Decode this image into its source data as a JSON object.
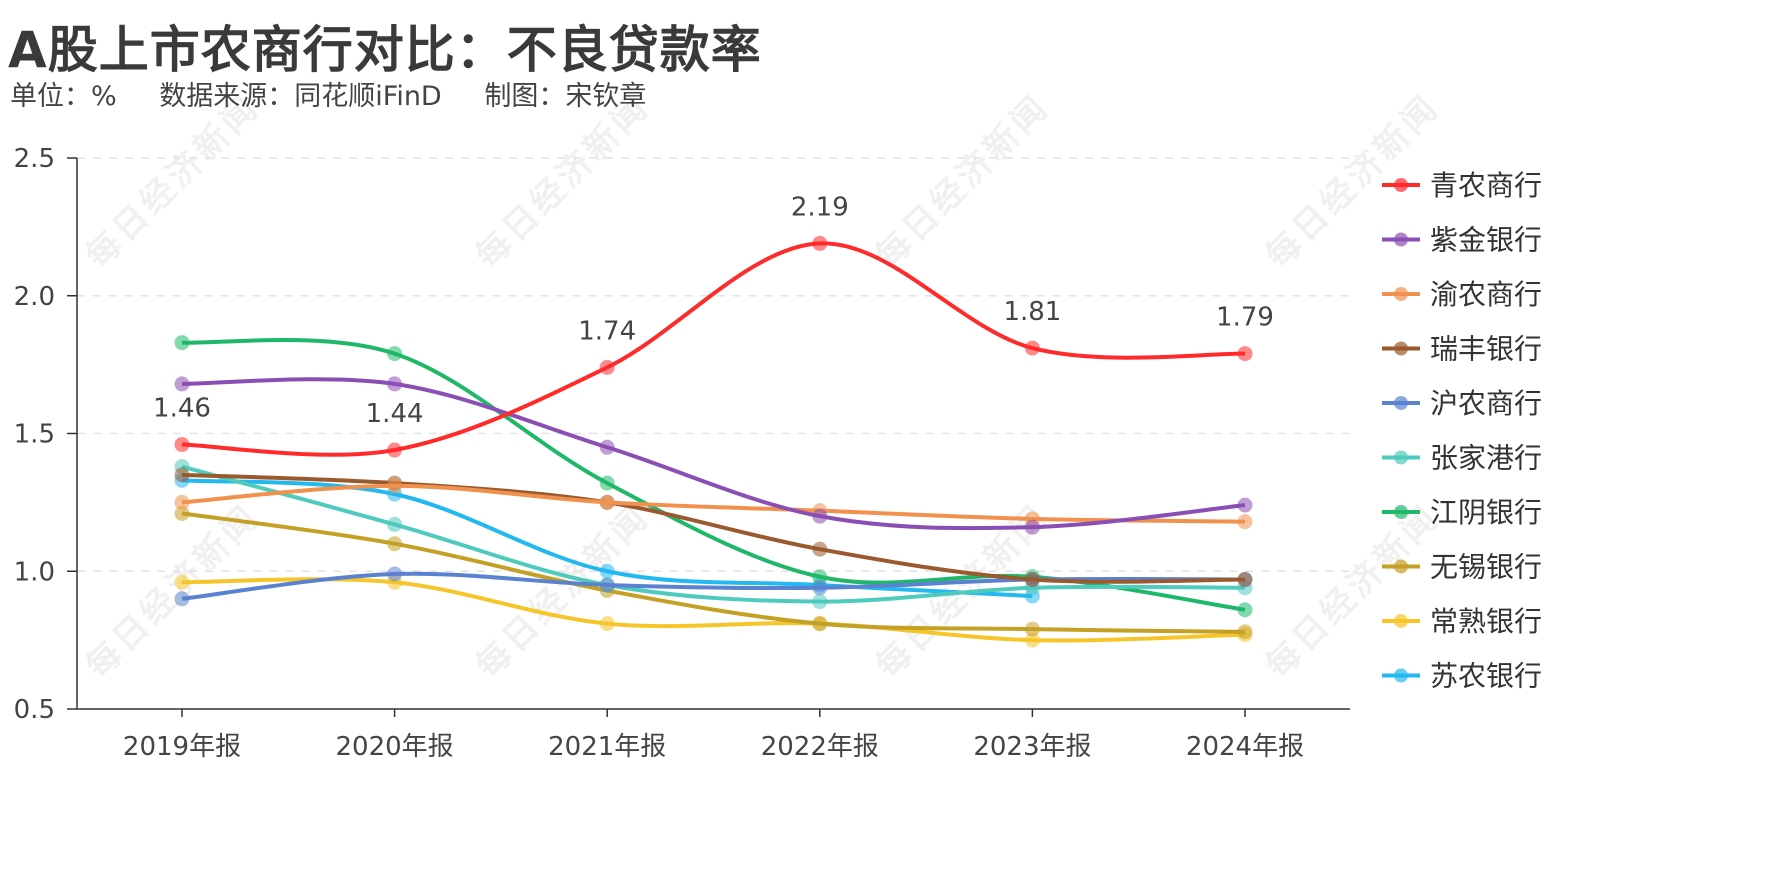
{
  "title": "A股上市农商行对比：不良贷款率",
  "subtitle": {
    "unit": "单位：%",
    "source": "数据来源：同花顺iFinD",
    "author": "制图：宋钦章"
  },
  "watermark": "每日经济新闻",
  "chart_data": {
    "type": "line",
    "title": "A股上市农商行对比：不良贷款率",
    "xlabel": "",
    "ylabel": "%",
    "ylim": [
      0.5,
      2.5
    ],
    "yticks": [
      "0.5",
      "1.0",
      "1.5",
      "2.0",
      "2.5"
    ],
    "grid": true,
    "legend_position": "right",
    "categories": [
      "2019年报",
      "2020年报",
      "2021年报",
      "2022年报",
      "2023年报",
      "2024年报"
    ],
    "series": [
      {
        "name": "青农商行",
        "color": "#ff2a2a",
        "values": [
          1.46,
          1.44,
          1.74,
          2.19,
          1.81,
          1.79
        ],
        "labels": [
          "1.46",
          "1.44",
          "1.74",
          "2.19",
          "1.81",
          "1.79"
        ]
      },
      {
        "name": "紫金银行",
        "color": "#8a4fb5",
        "values": [
          1.68,
          1.68,
          1.45,
          1.2,
          1.16,
          1.24
        ]
      },
      {
        "name": "渝农商行",
        "color": "#f0924e",
        "values": [
          1.25,
          1.31,
          1.25,
          1.22,
          1.19,
          1.18
        ]
      },
      {
        "name": "瑞丰银行",
        "color": "#9a5a2e",
        "values": [
          1.35,
          1.32,
          1.25,
          1.08,
          0.97,
          0.97
        ]
      },
      {
        "name": "沪农商行",
        "color": "#5b82d0",
        "values": [
          0.9,
          0.99,
          0.95,
          0.94,
          0.97,
          0.97
        ]
      },
      {
        "name": "张家港行",
        "color": "#4ecbbd",
        "values": [
          1.38,
          1.17,
          0.95,
          0.89,
          0.94,
          0.94
        ]
      },
      {
        "name": "江阴银行",
        "color": "#1fb86a",
        "values": [
          1.83,
          1.79,
          1.32,
          0.98,
          0.98,
          0.86
        ]
      },
      {
        "name": "无锡银行",
        "color": "#c4a025",
        "values": [
          1.21,
          1.1,
          0.93,
          0.81,
          0.79,
          0.78
        ]
      },
      {
        "name": "常熟银行",
        "color": "#f5c52a",
        "values": [
          0.96,
          0.96,
          0.81,
          0.81,
          0.75,
          0.77
        ]
      },
      {
        "name": "苏农银行",
        "color": "#22b8f0",
        "values": [
          1.33,
          1.28,
          1.0,
          0.95,
          0.91,
          null
        ]
      }
    ]
  }
}
